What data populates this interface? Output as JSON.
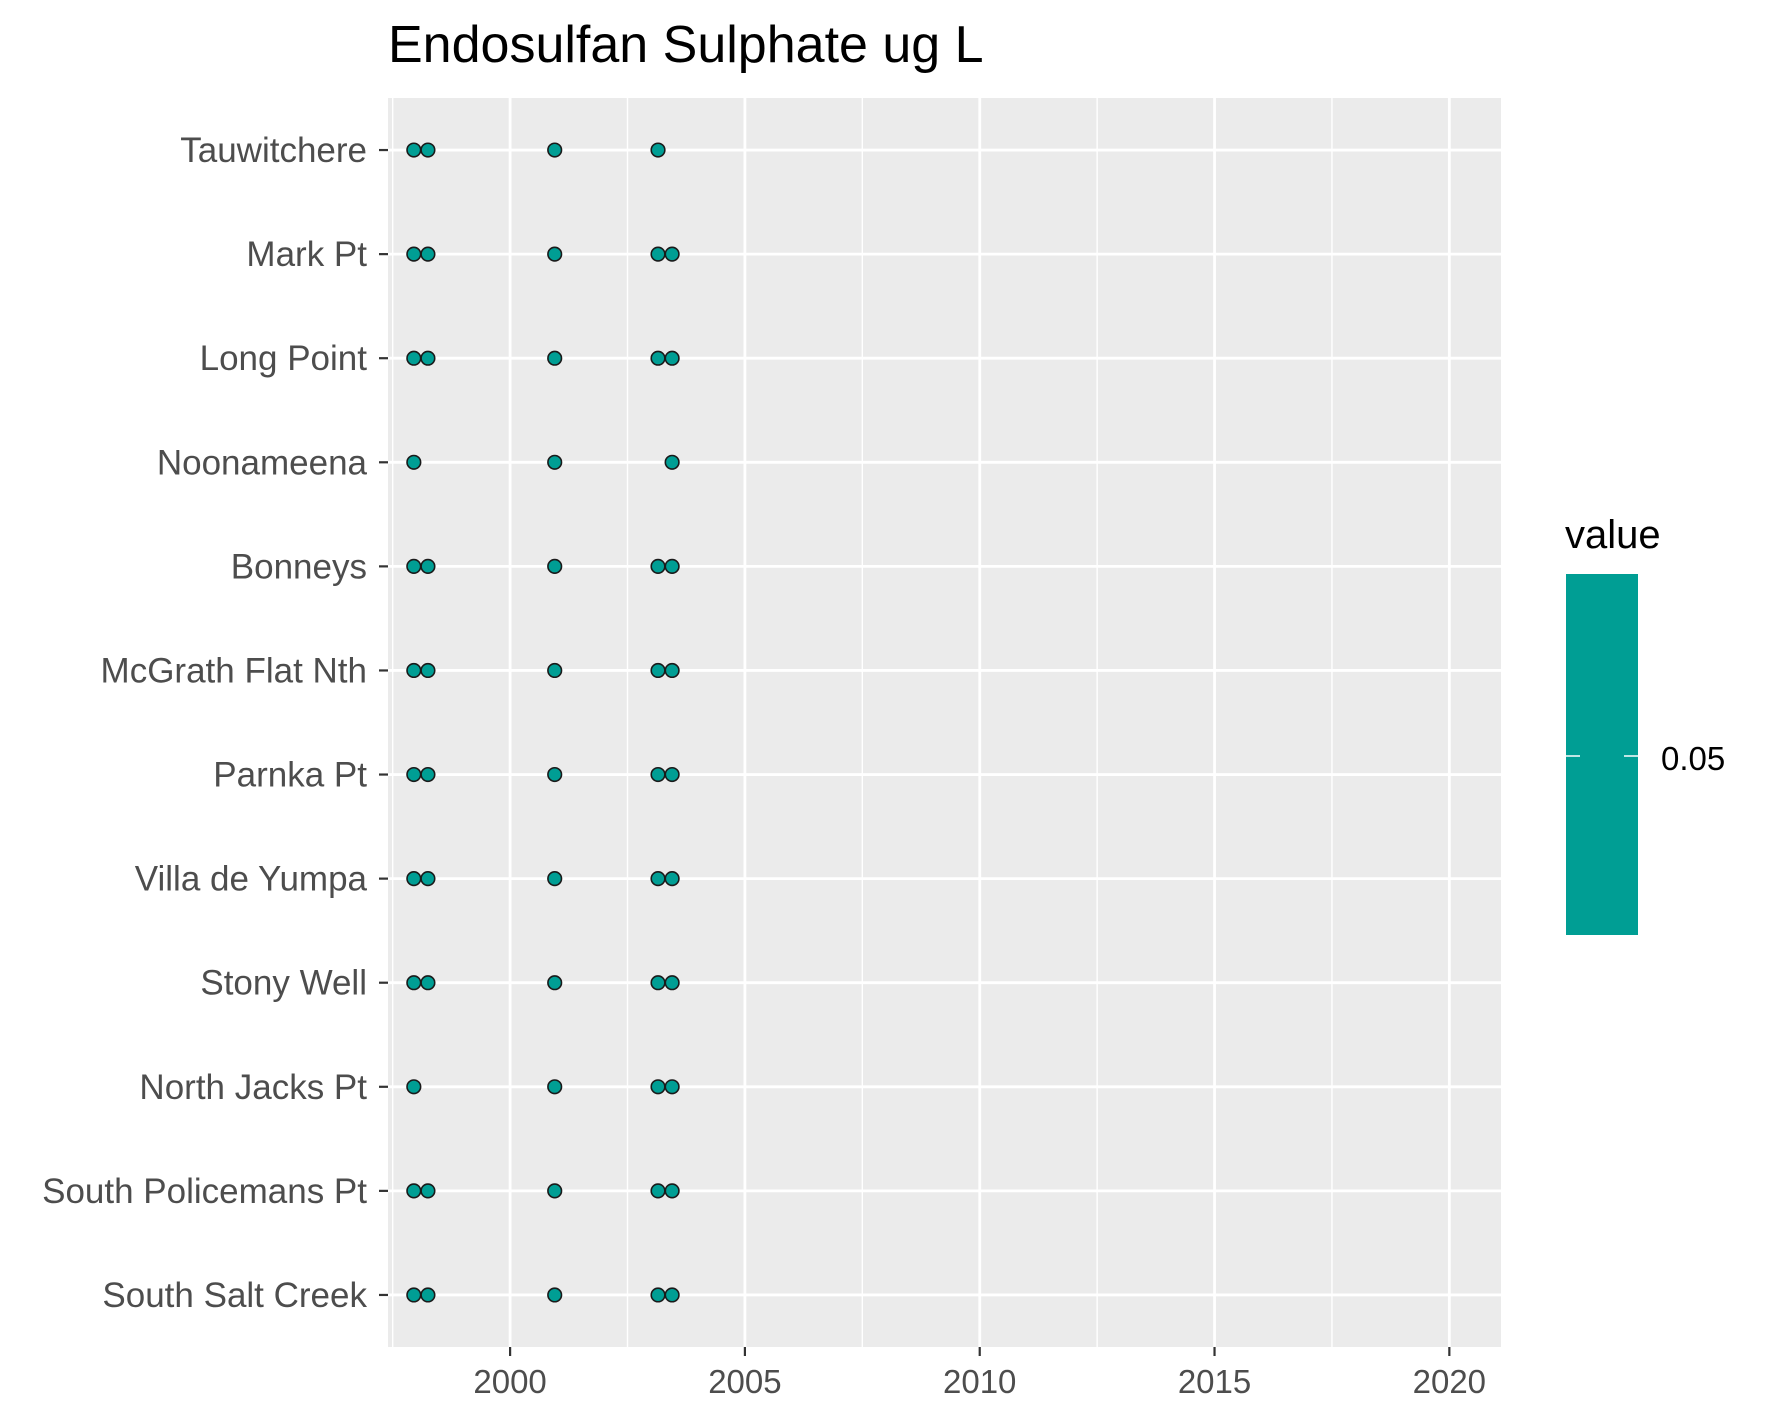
{
  "chart_data": {
    "type": "scatter",
    "title": "Endosulfan Sulphate ug L",
    "xlabel": "",
    "ylabel": "",
    "xlim": [
      1997.4,
      2021.1
    ],
    "x_ticks": [
      2000,
      2005,
      2010,
      2015,
      2020
    ],
    "x_tick_labels": [
      "2000",
      "2005",
      "2010",
      "2015",
      "2020"
    ],
    "grid": true,
    "background": "#EBEBEB",
    "point_fill": "#009E94",
    "point_stroke": "#1a1a1a",
    "categories": [
      "Tauwitchere",
      "Mark Pt",
      "Long Point",
      "Noonameena",
      "Bonneys",
      "McGrath Flat Nth",
      "Parnka Pt",
      "Villa de Yumpa",
      "Stony Well",
      "North Jacks Pt",
      "South Policemans Pt",
      "South Salt Creek"
    ],
    "series": [
      {
        "site": "Tauwitchere",
        "x": [
          1997.95,
          1998.25,
          2000.95,
          2003.15
        ]
      },
      {
        "site": "Mark Pt",
        "x": [
          1997.95,
          1998.25,
          2000.95,
          2003.15,
          2003.45
        ]
      },
      {
        "site": "Long Point",
        "x": [
          1997.95,
          1998.25,
          2000.95,
          2003.15,
          2003.45
        ]
      },
      {
        "site": "Noonameena",
        "x": [
          1997.95,
          2000.95,
          2003.45
        ]
      },
      {
        "site": "Bonneys",
        "x": [
          1997.95,
          1998.25,
          2000.95,
          2003.15,
          2003.45
        ]
      },
      {
        "site": "McGrath Flat Nth",
        "x": [
          1997.95,
          1998.25,
          2000.95,
          2003.15,
          2003.45
        ]
      },
      {
        "site": "Parnka Pt",
        "x": [
          1997.95,
          1998.25,
          2000.95,
          2003.15,
          2003.45
        ]
      },
      {
        "site": "Villa de Yumpa",
        "x": [
          1997.95,
          1998.25,
          2000.95,
          2003.15,
          2003.45
        ]
      },
      {
        "site": "Stony Well",
        "x": [
          1997.95,
          1998.25,
          2000.95,
          2003.15,
          2003.45
        ]
      },
      {
        "site": "North Jacks Pt",
        "x": [
          1997.95,
          2000.95,
          2003.15,
          2003.45
        ]
      },
      {
        "site": "South Policemans Pt",
        "x": [
          1997.95,
          1998.25,
          2000.95,
          2003.15,
          2003.45
        ]
      },
      {
        "site": "South Salt Creek",
        "x": [
          1997.95,
          1998.25,
          2000.95,
          2003.15,
          2003.45
        ]
      }
    ],
    "legend": {
      "title": "value",
      "placement": "right",
      "tick_label": "0.05",
      "color": "#009E94"
    }
  }
}
